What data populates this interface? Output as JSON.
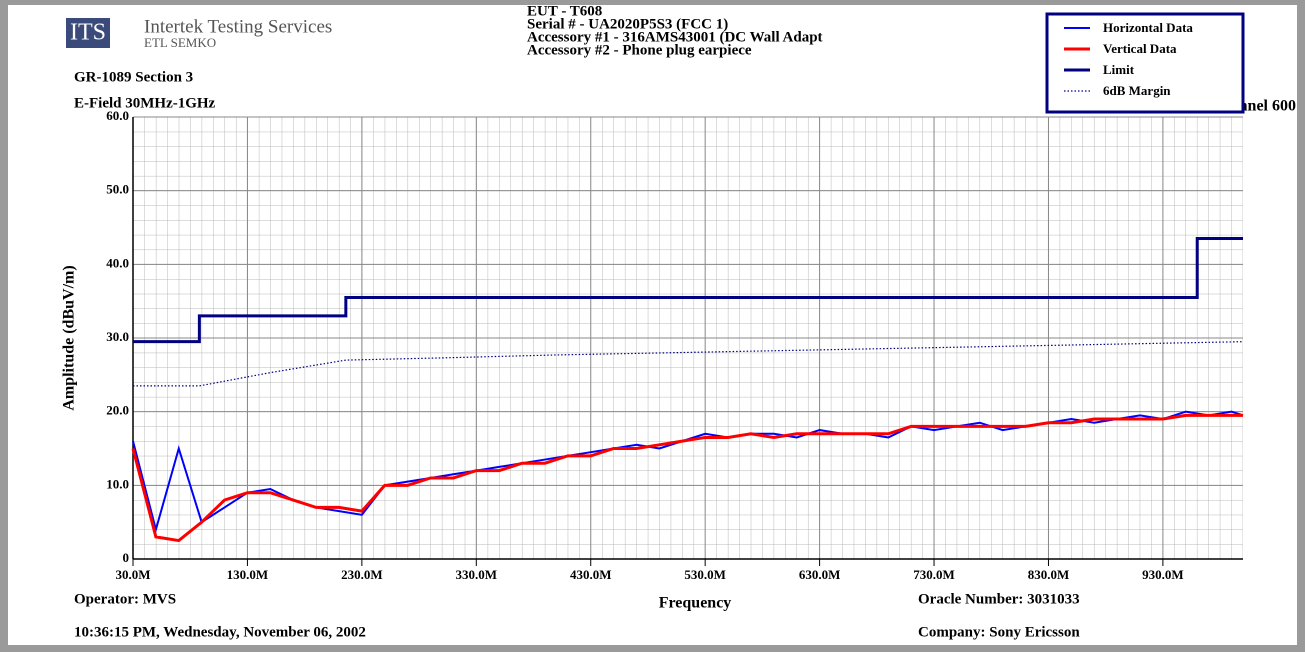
{
  "header": {
    "logo": "ITS",
    "company": "Intertek Testing Services",
    "division": "ETL SEMKO",
    "spec": "GR-1089 Section 3",
    "test": "E-Field 30MHz-1GHz",
    "eut_lines": [
      "EUT - T608",
      "Serial # - UA2020P5S3 (FCC 1)",
      "Accessory #1 - 316AMS43001 (DC Wall Adapt",
      "Accessory #2 - Phone plug earpiece"
    ],
    "mode": "CDMA 1900 - Channel 600"
  },
  "footer": {
    "operator": "Operator: MVS",
    "timestamp": "10:36:15 PM, Wednesday, November 06, 2002",
    "oracle": "Oracle Number: 3031033",
    "company": "Company: Sony Ericsson"
  },
  "chart_data": {
    "type": "line",
    "xlabel": "Frequency",
    "ylabel": "Amplitude (dBuV/m)",
    "xlim": [
      30,
      1000
    ],
    "ylim": [
      0,
      60
    ],
    "grid": true,
    "legend": "upper right",
    "xticks": [
      {
        "value": 30,
        "label": "30.0M"
      },
      {
        "value": 130,
        "label": "130.0M"
      },
      {
        "value": 230,
        "label": "230.0M"
      },
      {
        "value": 330,
        "label": "330.0M"
      },
      {
        "value": 430,
        "label": "430.0M"
      },
      {
        "value": 530,
        "label": "530.0M"
      },
      {
        "value": 630,
        "label": "630.0M"
      },
      {
        "value": 730,
        "label": "730.0M"
      },
      {
        "value": 830,
        "label": "830.0M"
      },
      {
        "value": 930,
        "label": "930.0M"
      }
    ],
    "yticks": [
      0,
      {
        "value": 10,
        "label": "10.0"
      },
      {
        "value": 20,
        "label": "20.0"
      },
      {
        "value": 30,
        "label": "30.0"
      },
      {
        "value": 40,
        "label": "40.0"
      },
      {
        "value": 50,
        "label": "50.0"
      },
      {
        "value": 60,
        "label": "60.0"
      }
    ],
    "series": [
      {
        "name": "Horizontal Data",
        "color": "#0000ff",
        "width": 2,
        "style": "solid",
        "x": [
          30,
          50,
          70,
          90,
          110,
          130,
          150,
          170,
          190,
          210,
          230,
          250,
          270,
          290,
          310,
          330,
          350,
          370,
          390,
          410,
          430,
          450,
          470,
          490,
          510,
          530,
          550,
          570,
          590,
          610,
          630,
          650,
          670,
          690,
          710,
          730,
          750,
          770,
          790,
          810,
          830,
          850,
          870,
          890,
          910,
          930,
          950,
          970,
          990,
          1000
        ],
        "values": [
          16,
          4,
          15,
          5,
          7,
          9,
          9.5,
          8,
          7,
          6.5,
          6,
          10,
          10.5,
          11,
          11.5,
          12,
          12.5,
          13,
          13.5,
          14,
          14.5,
          15,
          15.5,
          15,
          16,
          17,
          16.5,
          17,
          17,
          16.5,
          17.5,
          17,
          17,
          16.5,
          18,
          17.5,
          18,
          18.5,
          17.5,
          18,
          18.5,
          19,
          18.5,
          19,
          19.5,
          19,
          20,
          19.5,
          20,
          19.5
        ]
      },
      {
        "name": "Vertical Data",
        "color": "#ff0000",
        "width": 3,
        "style": "solid",
        "x": [
          30,
          50,
          70,
          90,
          110,
          130,
          150,
          170,
          190,
          210,
          230,
          250,
          270,
          290,
          310,
          330,
          350,
          370,
          390,
          410,
          430,
          450,
          470,
          490,
          510,
          530,
          550,
          570,
          590,
          610,
          630,
          650,
          670,
          690,
          710,
          730,
          750,
          770,
          790,
          810,
          830,
          850,
          870,
          890,
          910,
          930,
          950,
          970,
          990,
          1000
        ],
        "values": [
          15,
          3,
          2.5,
          5,
          8,
          9,
          9,
          8,
          7,
          7,
          6.5,
          10,
          10,
          11,
          11,
          12,
          12,
          13,
          13,
          14,
          14,
          15,
          15,
          15.5,
          16,
          16.5,
          16.5,
          17,
          16.5,
          17,
          17,
          17,
          17,
          17,
          18,
          18,
          18,
          18,
          18,
          18,
          18.5,
          18.5,
          19,
          19,
          19,
          19,
          19.5,
          19.5,
          19.5,
          19.5
        ]
      },
      {
        "name": "Limit",
        "color": "#000080",
        "width": 3,
        "style": "solid",
        "x": [
          30,
          88,
          88,
          216,
          216,
          960,
          960,
          1000
        ],
        "values": [
          29.5,
          29.5,
          33,
          33,
          35.5,
          35.5,
          43.5,
          43.5
        ]
      },
      {
        "name": "6dB Margin",
        "color": "#000080",
        "width": 1.2,
        "style": "dotted",
        "x": [
          30,
          88,
          150,
          216,
          300,
          400,
          500,
          600,
          700,
          800,
          900,
          1000
        ],
        "values": [
          23.5,
          23.5,
          25.3,
          27,
          27.3,
          27.7,
          28,
          28.3,
          28.6,
          28.9,
          29.2,
          29.5
        ]
      }
    ]
  }
}
